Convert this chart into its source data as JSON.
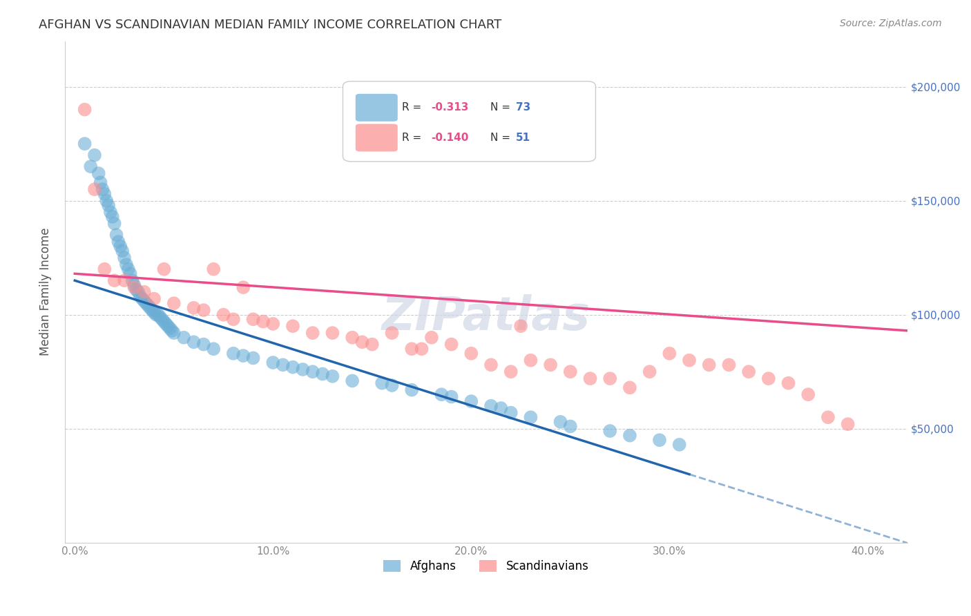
{
  "title": "AFGHAN VS SCANDINAVIAN MEDIAN FAMILY INCOME CORRELATION CHART",
  "source": "Source: ZipAtlas.com",
  "ylabel": "Median Family Income",
  "xlabel_ticks": [
    "0.0%",
    "10.0%",
    "20.0%",
    "30.0%",
    "40.0%"
  ],
  "xlabel_vals": [
    0.0,
    0.1,
    0.2,
    0.3,
    0.4
  ],
  "ytick_vals": [
    50000,
    100000,
    150000,
    200000
  ],
  "ytick_labels": [
    "$50,000",
    "$100,000",
    "$150,000",
    "$200,000"
  ],
  "ymin": 0,
  "ymax": 220000,
  "xmin": -0.005,
  "xmax": 0.42,
  "watermark": "ZIPatlas",
  "legend_r_afghan": "R = -0.313",
  "legend_n_afghan": "N = 73",
  "legend_r_scand": "R = -0.140",
  "legend_n_scand": "N = 51",
  "afghan_color": "#6baed6",
  "scand_color": "#fc8d8d",
  "afghan_line_color": "#2166ac",
  "scand_line_color": "#e84d8a",
  "afghan_scatter_x": [
    0.005,
    0.008,
    0.01,
    0.012,
    0.013,
    0.014,
    0.015,
    0.016,
    0.017,
    0.018,
    0.019,
    0.02,
    0.021,
    0.022,
    0.023,
    0.024,
    0.025,
    0.026,
    0.027,
    0.028,
    0.029,
    0.03,
    0.031,
    0.032,
    0.033,
    0.034,
    0.035,
    0.036,
    0.037,
    0.038,
    0.039,
    0.04,
    0.041,
    0.042,
    0.043,
    0.044,
    0.045,
    0.046,
    0.047,
    0.048,
    0.049,
    0.05,
    0.055,
    0.06,
    0.065,
    0.07,
    0.08,
    0.085,
    0.09,
    0.1,
    0.105,
    0.11,
    0.115,
    0.12,
    0.125,
    0.13,
    0.14,
    0.155,
    0.16,
    0.17,
    0.185,
    0.19,
    0.2,
    0.21,
    0.215,
    0.22,
    0.23,
    0.245,
    0.25,
    0.27,
    0.28,
    0.295,
    0.305
  ],
  "afghan_scatter_y": [
    175000,
    165000,
    170000,
    162000,
    158000,
    155000,
    153000,
    150000,
    148000,
    145000,
    143000,
    140000,
    135000,
    132000,
    130000,
    128000,
    125000,
    122000,
    120000,
    118000,
    115000,
    113000,
    111000,
    110000,
    108000,
    107000,
    106000,
    105000,
    104000,
    103000,
    102000,
    101000,
    100000,
    100000,
    99000,
    98000,
    97000,
    96000,
    95000,
    94000,
    93000,
    92000,
    90000,
    88000,
    87000,
    85000,
    83000,
    82000,
    81000,
    79000,
    78000,
    77000,
    76000,
    75000,
    74000,
    73000,
    71000,
    70000,
    69000,
    67000,
    65000,
    64000,
    62000,
    60000,
    59000,
    57000,
    55000,
    53000,
    51000,
    49000,
    47000,
    45000,
    43000
  ],
  "scand_scatter_x": [
    0.005,
    0.01,
    0.015,
    0.02,
    0.025,
    0.03,
    0.035,
    0.04,
    0.045,
    0.05,
    0.06,
    0.065,
    0.07,
    0.075,
    0.08,
    0.085,
    0.09,
    0.095,
    0.1,
    0.11,
    0.12,
    0.13,
    0.14,
    0.145,
    0.15,
    0.16,
    0.17,
    0.175,
    0.18,
    0.19,
    0.2,
    0.21,
    0.22,
    0.225,
    0.23,
    0.24,
    0.25,
    0.26,
    0.27,
    0.28,
    0.29,
    0.3,
    0.31,
    0.32,
    0.33,
    0.34,
    0.35,
    0.36,
    0.37,
    0.38,
    0.39
  ],
  "scand_scatter_y": [
    190000,
    155000,
    120000,
    115000,
    115000,
    112000,
    110000,
    107000,
    120000,
    105000,
    103000,
    102000,
    120000,
    100000,
    98000,
    112000,
    98000,
    97000,
    96000,
    95000,
    92000,
    92000,
    90000,
    88000,
    87000,
    92000,
    85000,
    85000,
    90000,
    87000,
    83000,
    78000,
    75000,
    95000,
    80000,
    78000,
    75000,
    72000,
    72000,
    68000,
    75000,
    83000,
    80000,
    78000,
    78000,
    75000,
    72000,
    70000,
    65000,
    55000,
    52000
  ],
  "title_fontsize": 13,
  "source_fontsize": 10,
  "axis_label_fontsize": 12,
  "tick_fontsize": 11,
  "legend_fontsize": 12,
  "watermark_fontsize": 48,
  "watermark_color": "#d0d8e8",
  "background_color": "#ffffff",
  "grid_color": "#cccccc"
}
